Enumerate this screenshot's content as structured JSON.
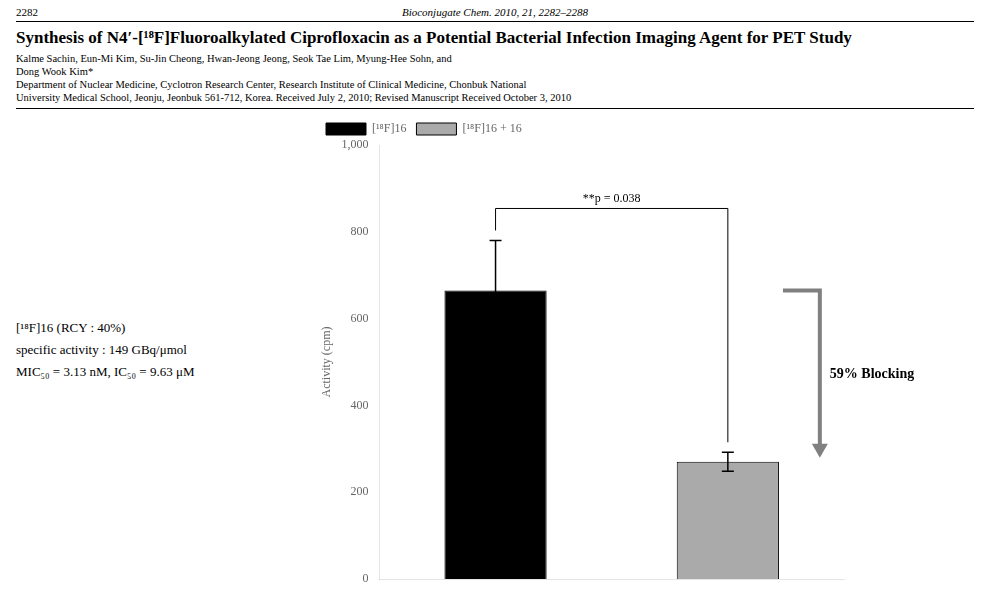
{
  "chart_data": {
    "type": "bar",
    "title": "Synthesis of N4′-[¹⁸F]Fluoroalkylated Ciprofloxacin as a Potential Bacterial Infection Imaging Agent for PET Study",
    "categories": [
      null,
      null
    ],
    "series": [
      {
        "name": "[¹⁸F]16",
        "color": "#000000",
        "values": [
          665,
          null
        ],
        "errors": [
          115,
          null
        ]
      },
      {
        "name": "[¹⁸F]16 + 16",
        "color": "#aaaaaa",
        "values": [
          null,
          270
        ],
        "errors": [
          null,
          22
        ]
      }
    ],
    "ylabel": "Activity (cpm)",
    "ylim": [
      0,
      1000
    ],
    "yticks": [
      0,
      200,
      400,
      600,
      800,
      1000
    ],
    "grid": false,
    "legend": "upper left",
    "tick_labels": "y",
    "annotations": [
      {
        "kind": "header",
        "text": "2282"
      },
      {
        "kind": "header",
        "text": "Bioconjugate Chem. 2010, 21, 2282–2288"
      },
      {
        "kind": "byline",
        "text": "Kalme Sachin, Eun-Mi Kim, Su-Jin Cheong, Hwan-Jeong Jeong, Seok Tae Lim, Myung-Hee Sohn, and"
      },
      {
        "kind": "byline",
        "text": "Dong Wook Kim*"
      },
      {
        "kind": "byline",
        "text": "Department of Nuclear Medicine, Cyclotron Research Center, Research Institute of Clinical Medicine, Chonbuk National"
      },
      {
        "kind": "byline",
        "text": "University Medical School, Jeonju, Jeonbuk 561-712, Korea. Received July 2, 2010; Revised Manuscript Received October 3, 2010"
      },
      {
        "kind": "note",
        "text": "[¹⁸F]16 (RCY : 40%)"
      },
      {
        "kind": "note",
        "text": "specific activity : 149 GBq/μmol"
      },
      {
        "kind": "note",
        "text": "MIC₅₀ = 3.13 nM, IC₅₀ = 9.63 μM"
      },
      {
        "kind": "bracket",
        "text": "**p = 0.038",
        "between": [
          0,
          1
        ]
      },
      {
        "kind": "arrow",
        "text": "59% Blocking",
        "from": 0,
        "to": 1
      }
    ]
  }
}
